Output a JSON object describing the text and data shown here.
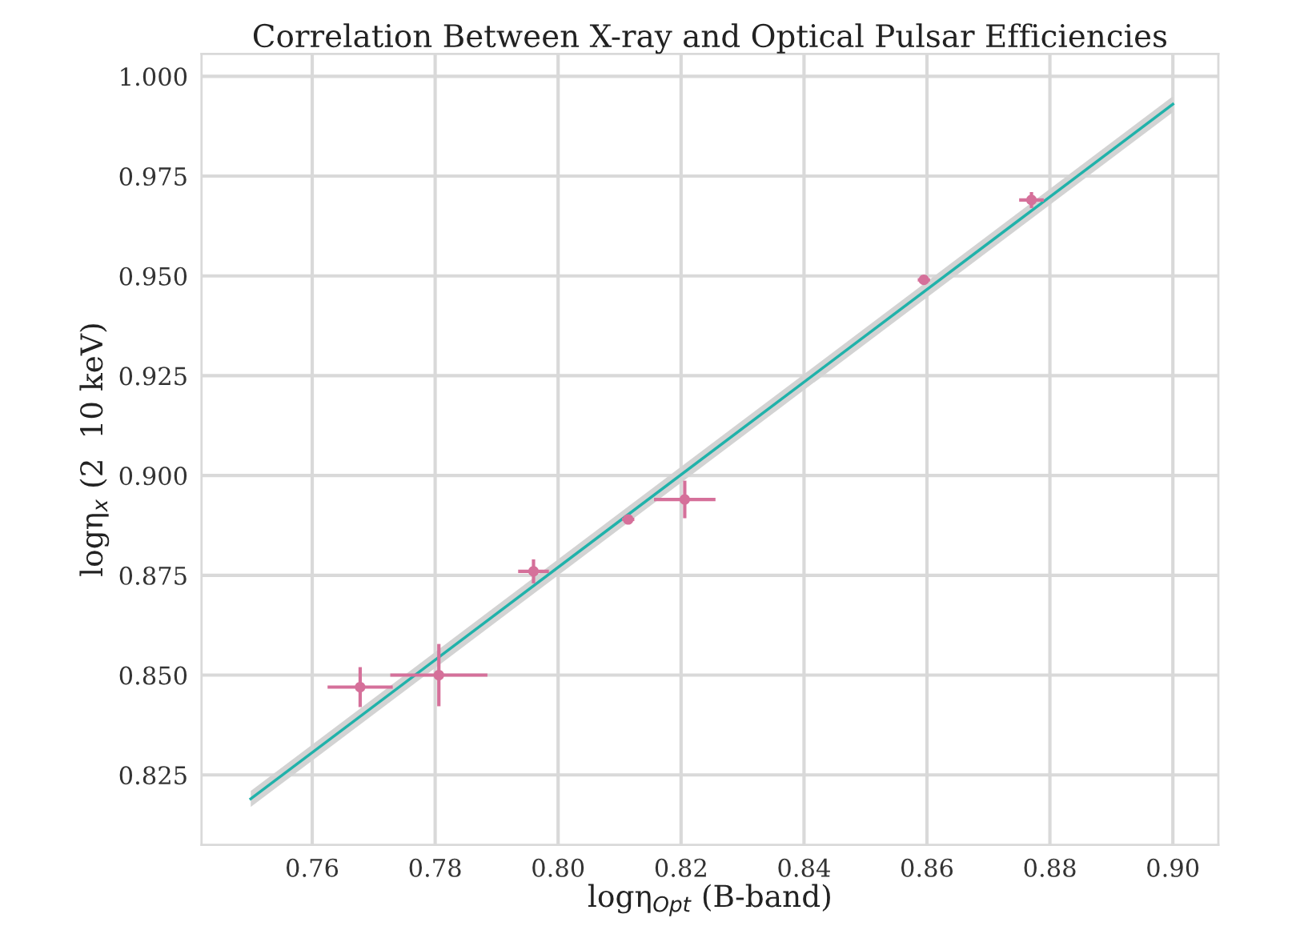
{
  "chart_data": {
    "type": "scatter",
    "title": "Correlation Between X-ray and Optical Pulsar Efficiencies",
    "xlabel": "logη$_{Opt}$ (B-band)",
    "ylabel": "logη$_{x}$ (2  10 keV)",
    "xlim": [
      0.742,
      0.9074
    ],
    "ylim": [
      0.8075,
      1.0056
    ],
    "xticks": [
      {
        "value": 0.76,
        "label": "0.76"
      },
      {
        "value": 0.78,
        "label": "0.78"
      },
      {
        "value": 0.8,
        "label": "0.80"
      },
      {
        "value": 0.82,
        "label": "0.82"
      },
      {
        "value": 0.84,
        "label": "0.84"
      },
      {
        "value": 0.86,
        "label": "0.86"
      },
      {
        "value": 0.88,
        "label": "0.88"
      },
      {
        "value": 0.9,
        "label": "0.90"
      }
    ],
    "yticks": [
      {
        "value": 0.825,
        "label": "0.825"
      },
      {
        "value": 0.85,
        "label": "0.850"
      },
      {
        "value": 0.875,
        "label": "0.875"
      },
      {
        "value": 0.9,
        "label": "0.900"
      },
      {
        "value": 0.925,
        "label": "0.925"
      },
      {
        "value": 0.95,
        "label": "0.950"
      },
      {
        "value": 0.975,
        "label": "0.975"
      },
      {
        "value": 1.0,
        "label": "1.000"
      }
    ],
    "grid": true,
    "series": [
      {
        "type": "line",
        "marker": "none",
        "color": "#20b2aa",
        "x": [
          0.75,
          0.9
        ],
        "values": [
          0.819,
          0.993
        ],
        "lower": [
          0.817,
          0.991
        ],
        "upper": [
          0.821,
          0.995
        ]
      },
      {
        "marker": "circle",
        "color": "#d5709a",
        "x": [
          0.7678,
          0.7806,
          0.796,
          0.8114,
          0.8206,
          0.8595,
          0.877
        ],
        "values": [
          0.847,
          0.85,
          0.876,
          0.889,
          0.894,
          0.949,
          0.969
        ],
        "xerrors": [
          0.0053,
          0.0079,
          0.0025,
          0.001,
          0.005,
          0.001,
          0.002
        ],
        "errors": [
          0.005,
          0.0078,
          0.003,
          0.001,
          0.0047,
          0.001,
          0.002
        ]
      }
    ]
  }
}
